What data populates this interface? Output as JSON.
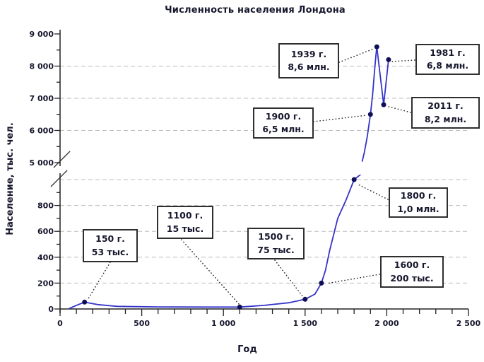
{
  "title": "Численность населения Лондона",
  "chart_data": {
    "type": "line",
    "title": "Численность населения Лондона",
    "xlabel": "Год",
    "ylabel": "Население, тыс. чел.",
    "legend": "none",
    "grid": "dashed-horizontal",
    "x_axis": {
      "min": 0,
      "max": 2500,
      "major_step": 500,
      "minor_step": 100,
      "labels": [
        "0",
        "500",
        "1 000",
        "1 500",
        "2 000",
        "2 500"
      ]
    },
    "y_axis_break_between": [
      1000,
      5000
    ],
    "y_upper": {
      "min": 5000,
      "max": 9000,
      "major_step": 1000,
      "minor_step": 500,
      "labels": [
        "9 000",
        "8 000",
        "7 000",
        "6 000",
        "5 000"
      ],
      "gridlines": [
        6000,
        7000,
        8000
      ]
    },
    "y_lower": {
      "min": 0,
      "max": 1000,
      "major_step": 200,
      "minor_step": 100,
      "labels": [
        "800",
        "600",
        "400",
        "200",
        "0"
      ],
      "gridlines": [
        200,
        400,
        600,
        800,
        1000
      ]
    },
    "series": [
      {
        "name": "Численность населения Лондона, тыс. чел.",
        "color": "#3434c9",
        "marker_color": "#0f0f58",
        "points": [
          {
            "year": 150,
            "thousands": 53
          },
          {
            "year": 1100,
            "thousands": 15
          },
          {
            "year": 1500,
            "thousands": 75
          },
          {
            "year": 1600,
            "thousands": 200
          },
          {
            "year": 1800,
            "thousands": 1000
          },
          {
            "year": 1900,
            "thousands": 6500
          },
          {
            "year": 1939,
            "thousands": 8600
          },
          {
            "year": 1981,
            "thousands": 6800
          },
          {
            "year": 2011,
            "thousands": 8200
          }
        ],
        "shape_lower": [
          [
            55,
            3
          ],
          [
            100,
            28
          ],
          [
            150,
            53
          ],
          [
            230,
            34
          ],
          [
            350,
            20
          ],
          [
            600,
            16
          ],
          [
            900,
            15
          ],
          [
            1100,
            15
          ],
          [
            1250,
            28
          ],
          [
            1400,
            48
          ],
          [
            1500,
            75
          ],
          [
            1560,
            115
          ],
          [
            1600,
            200
          ],
          [
            1625,
            300
          ],
          [
            1650,
            450
          ],
          [
            1700,
            700
          ],
          [
            1750,
            840
          ],
          [
            1800,
            1000
          ],
          [
            1845,
            1045
          ]
        ],
        "shape_upper": [
          [
            1849,
            5030
          ],
          [
            1862,
            5300
          ],
          [
            1880,
            5800
          ],
          [
            1900,
            6500
          ],
          [
            1913,
            7100
          ],
          [
            1926,
            7900
          ],
          [
            1934,
            8350
          ],
          [
            1939,
            8600
          ],
          [
            1981,
            6800
          ],
          [
            2011,
            8200
          ]
        ]
      }
    ]
  },
  "annotations": [
    {
      "year_label": "150 г.",
      "value_label": "53 тыс."
    },
    {
      "year_label": "1100 г.",
      "value_label": "15 тыс."
    },
    {
      "year_label": "1500 г.",
      "value_label": "75 тыс."
    },
    {
      "year_label": "1600 г.",
      "value_label": "200 тыс."
    },
    {
      "year_label": "1800 г.",
      "value_label": "1,0 млн."
    },
    {
      "year_label": "1900 г.",
      "value_label": "6,5 млн."
    },
    {
      "year_label": "1939 г.",
      "value_label": "8,6 млн."
    },
    {
      "year_label": "1981 г.",
      "value_label": "6,8 млн."
    },
    {
      "year_label": "2011 г.",
      "value_label": "8,2 млн."
    }
  ]
}
